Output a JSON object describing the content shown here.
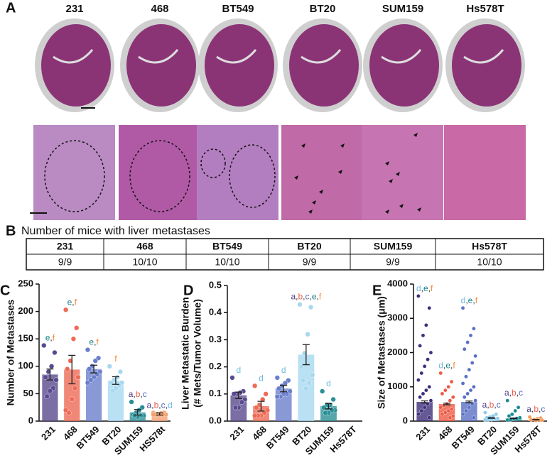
{
  "panel_labels": [
    "A",
    "B",
    "C",
    "D",
    "E"
  ],
  "cell_lines": [
    "231",
    "468",
    "BT549",
    "BT20",
    "SUM159",
    "Hs578T"
  ],
  "table": {
    "title": "Number of mice with liver metastases",
    "header": [
      "231",
      "468",
      "BT549",
      "BT20",
      "SUM159",
      "Hs578T"
    ],
    "rows": [
      [
        "9/9",
        "10/10",
        "10/10",
        "9/9",
        "9/9",
        "10/10"
      ]
    ]
  },
  "letter_colors": {
    "a": "#4b3a84",
    "b": "#e8604c",
    "c": "#5068b8",
    "d": "#6fb8e0",
    "e": "#137f86",
    "f": "#f08a3c"
  },
  "chart_data": [
    {
      "type": "bar",
      "ylabel": "Number of Metastases",
      "categories": [
        "231",
        "468",
        "BT549",
        "BT20",
        "SUM159",
        "HS578t"
      ],
      "colors": [
        "#5a4a8e",
        "#ee6a55",
        "#6a7fcc",
        "#a8d8f0",
        "#2a8f96",
        "#f5a070"
      ],
      "values": [
        85,
        94,
        95,
        74,
        16,
        13
      ],
      "errors": [
        10,
        26,
        7,
        7,
        5,
        2
      ],
      "points": [
        [
          138,
          125,
          100,
          90,
          80,
          75,
          60,
          55,
          45
        ],
        [
          203,
          170,
          150,
          110,
          95,
          80,
          60,
          40,
          15,
          20
        ],
        [
          130,
          115,
          110,
          100,
          95,
          90,
          85,
          80,
          75,
          70
        ],
        [
          100,
          90,
          80,
          75,
          70,
          70,
          65,
          60,
          55
        ],
        [
          35,
          25,
          20,
          15,
          12,
          10,
          10,
          8,
          10
        ],
        [
          15,
          15,
          14,
          13,
          13,
          12,
          12,
          12,
          12,
          12
        ]
      ],
      "annotations": [
        [
          "e",
          ",",
          "f"
        ],
        [
          "e",
          ",",
          "f"
        ],
        [
          "e",
          ",",
          "f"
        ],
        [
          "f"
        ],
        [
          "a",
          ",",
          "b",
          ",",
          "c"
        ],
        [
          "a",
          ",",
          "b",
          ",",
          "c",
          ",",
          "d"
        ]
      ],
      "ylim": [
        0,
        250
      ],
      "yticks": [
        0,
        50,
        100,
        150,
        200,
        250
      ]
    },
    {
      "type": "bar",
      "ylabel": [
        "Liver Metastatic Burden",
        "(# Mets/Tumor Volume)"
      ],
      "categories": [
        "231",
        "468",
        "BT549",
        "BT20",
        "SUM159",
        "Hs578T"
      ],
      "colors": [
        "#5a4a8e",
        "#ee6a55",
        "#6a7fcc",
        "#a8d8f0",
        "#2a8f96",
        "#f5a070"
      ],
      "values": [
        0.095,
        0.055,
        0.12,
        0.245,
        0.055,
        null
      ],
      "errors": [
        0.012,
        0.018,
        0.012,
        0.037,
        0.01,
        null
      ],
      "points": [
        [
          0.16,
          0.11,
          0.105,
          0.1,
          0.1,
          0.08,
          0.07,
          0.05,
          0.05
        ],
        [
          0.13,
          0.1,
          0.08,
          0.06,
          0.05,
          0.04,
          0.03,
          0.02,
          0.02,
          0.02
        ],
        [
          0.16,
          0.15,
          0.14,
          0.13,
          0.12,
          0.11,
          0.1,
          0.1,
          0.09,
          0.09
        ],
        [
          0.43,
          0.42,
          0.32,
          0.25,
          0.2,
          0.17,
          0.14,
          0.12,
          0.15
        ],
        [
          0.11,
          0.08,
          0.06,
          0.06,
          0.05,
          0.04,
          0.04,
          0.03,
          0.03
        ],
        []
      ],
      "annotations": [
        [
          "d"
        ],
        [
          "d"
        ],
        [
          "d"
        ],
        [
          "a",
          ",",
          "b",
          ",",
          "c",
          ",",
          "e",
          ",",
          "f"
        ],
        [
          "d"
        ],
        null
      ],
      "ylim": [
        0,
        0.5
      ],
      "yticks": [
        {
          "value": 0,
          "label": "0.0"
        },
        0.1,
        0.2,
        0.3,
        0.4,
        0.5
      ]
    },
    {
      "type": "bar",
      "ylabel": "Size of Metastases (μm)",
      "categories": [
        "231",
        "468",
        "BT549",
        "BT20",
        "SUM159",
        "Hs578T"
      ],
      "colors": [
        "#3f2f7a",
        "#ee5a45",
        "#5a70c4",
        "#8ecbea",
        "#1a8a92",
        "#f39a5a"
      ],
      "values": [
        560,
        500,
        560,
        90,
        80,
        40
      ],
      "errors": [
        30,
        25,
        25,
        10,
        10,
        5
      ],
      "points": [
        [
          3650,
          3300,
          2800,
          2500,
          2200,
          2000,
          1800,
          1600,
          1400,
          1200,
          1000,
          900,
          800,
          700,
          600,
          500,
          400,
          300,
          200,
          100
        ],
        [
          1400,
          1150,
          1000,
          900,
          800,
          700,
          600,
          500,
          450,
          400,
          350,
          300,
          250,
          200,
          150,
          100
        ],
        [
          3300,
          2700,
          2500,
          2300,
          2100,
          1900,
          1700,
          1500,
          1300,
          1100,
          1000,
          900,
          800,
          700,
          600,
          500,
          400,
          300,
          200,
          100
        ],
        [
          250,
          200,
          150,
          120,
          100,
          80,
          60,
          50,
          40,
          30
        ],
        [
          600,
          400,
          300,
          200,
          150,
          100,
          80,
          60,
          40,
          30
        ],
        [
          120,
          90,
          70,
          50,
          40,
          30,
          20,
          15
        ]
      ],
      "annotations": [
        [
          "d",
          ",",
          "e",
          ",",
          "f"
        ],
        [
          "d",
          ",",
          "e",
          ",",
          "f"
        ],
        [
          "d",
          ",",
          "e",
          ",",
          "f"
        ],
        [
          "a",
          ",",
          "b",
          ",",
          "c"
        ],
        [
          "a",
          ",",
          "b",
          ",",
          "c"
        ],
        [
          "a",
          ",",
          "b",
          ",",
          "c"
        ]
      ],
      "ylim": [
        0,
        4000
      ],
      "yticks": [
        0,
        1000,
        2000,
        3000,
        4000
      ]
    }
  ]
}
